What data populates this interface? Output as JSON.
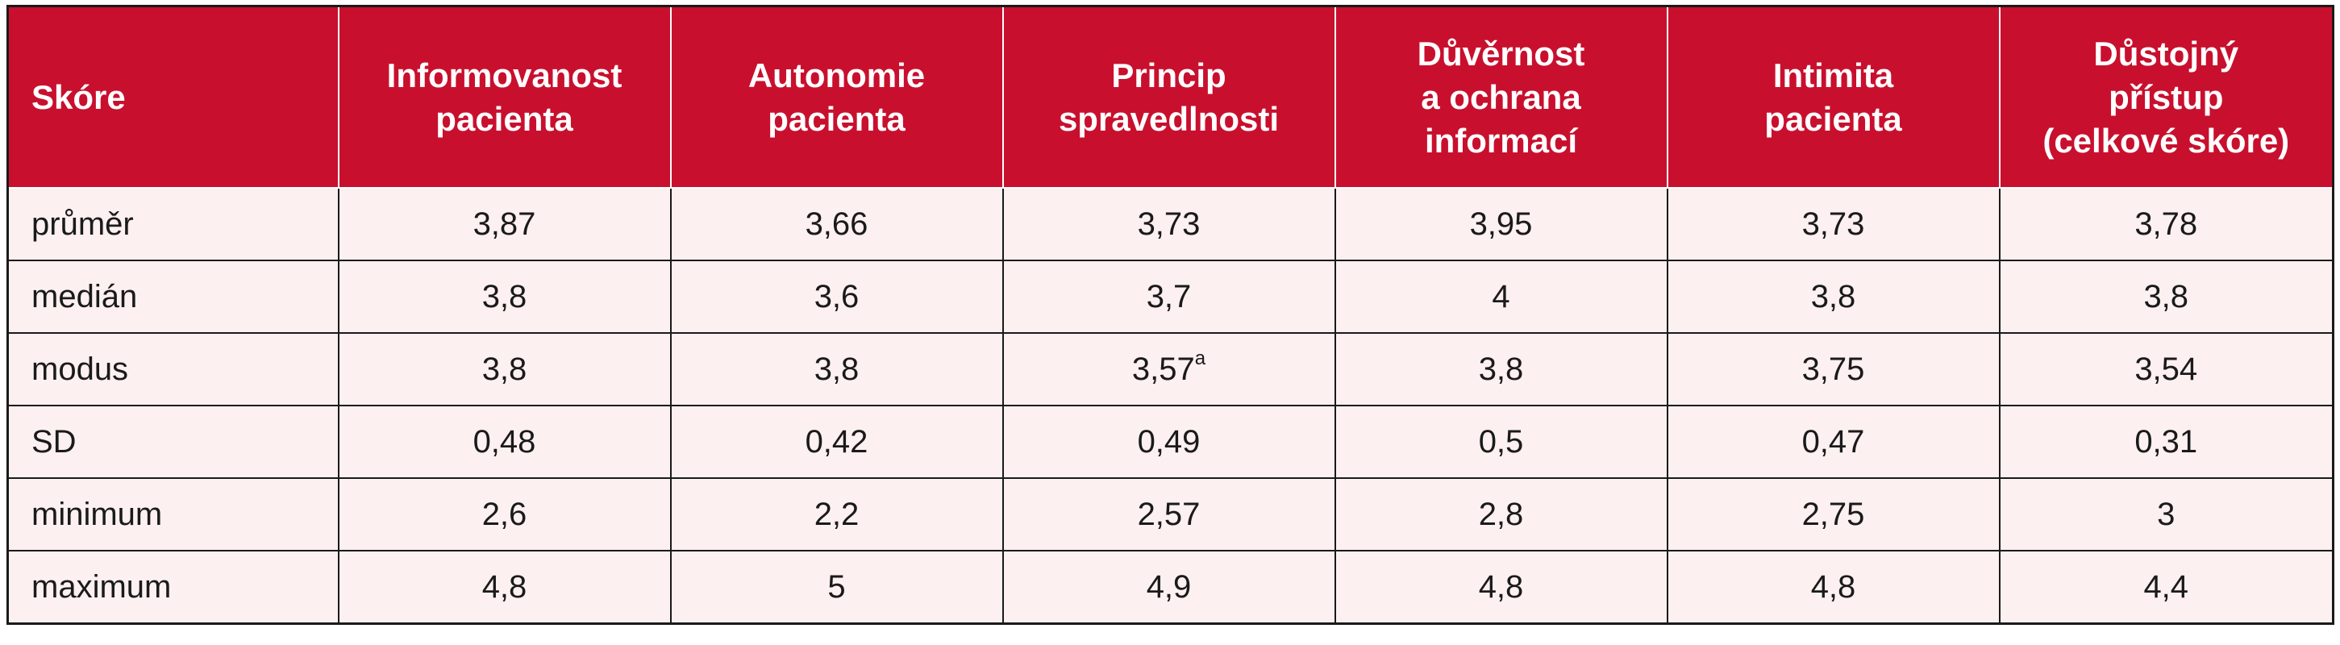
{
  "table": {
    "headers": [
      [
        "Skóre"
      ],
      [
        "Informovanost",
        "pacienta"
      ],
      [
        "Autonomie",
        "pacienta"
      ],
      [
        "Princip",
        "spravedlnosti"
      ],
      [
        "Důvěrnost",
        "a ochrana",
        "informací"
      ],
      [
        "Intimita",
        "pacienta"
      ],
      [
        "Důstojný",
        "přístup",
        "(celkové skóre)"
      ]
    ],
    "rows": [
      {
        "label": "průměr",
        "cells": [
          "3,87",
          "3,66",
          "3,73",
          "3,95",
          "3,73",
          "3,78"
        ]
      },
      {
        "label": "medián",
        "cells": [
          "3,8",
          "3,6",
          "3,7",
          "4",
          "3,8",
          "3,8"
        ]
      },
      {
        "label": "modus",
        "cells": [
          "3,8",
          "3,8",
          "3,57",
          "3,8",
          "3,75",
          "3,54"
        ],
        "footnote_mark": "a"
      },
      {
        "label": "SD",
        "cells": [
          "0,48",
          "0,42",
          "0,49",
          "0,5",
          "0,47",
          "0,31"
        ]
      },
      {
        "label": "minimum",
        "cells": [
          "2,6",
          "2,2",
          "2,57",
          "2,8",
          "2,75",
          "3"
        ]
      },
      {
        "label": "maximum",
        "cells": [
          "4,8",
          "5",
          "4,9",
          "4,8",
          "4,8",
          "4,4"
        ]
      }
    ]
  },
  "colors": {
    "header_bg": "#c8102e",
    "header_text": "#ffffff",
    "row_bg": "#fdf0f0",
    "border": "#1a1a1a"
  }
}
